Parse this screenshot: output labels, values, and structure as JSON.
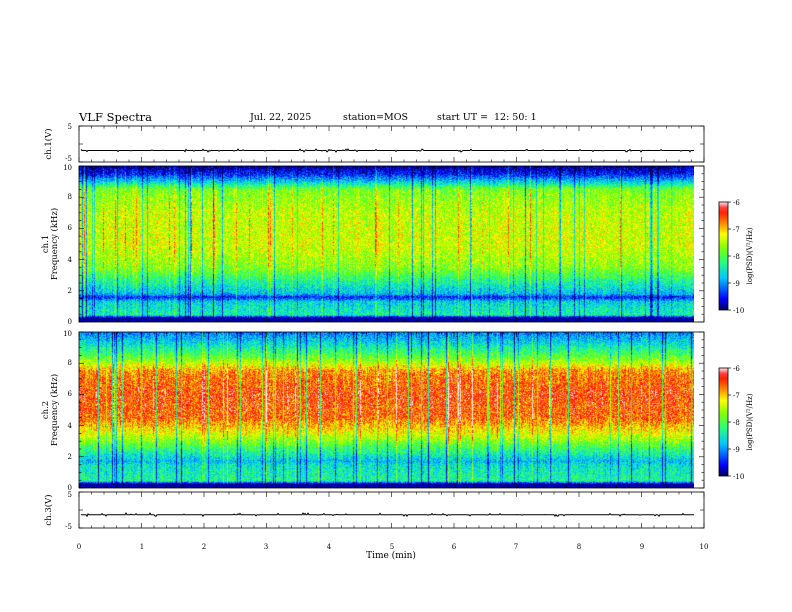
{
  "header": {
    "title": "VLF Spectra",
    "date": "Jul. 22, 2025",
    "station": "station=MOS",
    "start_label": "start  UT  =",
    "start_value": "12: 50: 1"
  },
  "colors": {
    "background": "#ffffff",
    "axis": "#000000",
    "colormap": [
      "#000080",
      "#0000ff",
      "#00ffff",
      "#00ff00",
      "#ffff00",
      "#ff0000",
      "#ffffff"
    ]
  },
  "chart_data": [
    {
      "type": "line",
      "name": "ch1-voltage",
      "ylabel": "ch.1(V)",
      "ylim": [
        -5,
        5
      ],
      "yticks": [
        "5",
        "-5"
      ],
      "baseline_value": -1.8,
      "xlim": [
        0,
        10
      ]
    },
    {
      "type": "heatmap",
      "name": "ch1-spectrogram",
      "ylabel": "ch.1",
      "ylabel2": "Frequency (kHz)",
      "ylim": [
        0,
        10
      ],
      "yticks": [
        "0",
        "2",
        "4",
        "6",
        "8",
        "10"
      ],
      "xlim": [
        0,
        10
      ],
      "xdata_max": 9.85,
      "bands": [
        {
          "f": 0.0,
          "v": 0.0
        },
        {
          "f": 0.3,
          "v": 0.05
        },
        {
          "f": 0.45,
          "v": 0.4
        },
        {
          "f": 1.3,
          "v": 0.33
        },
        {
          "f": 1.6,
          "v": 0.12
        },
        {
          "f": 1.8,
          "v": 0.3
        },
        {
          "f": 2.6,
          "v": 0.42
        },
        {
          "f": 3.5,
          "v": 0.58
        },
        {
          "f": 5.0,
          "v": 0.66
        },
        {
          "f": 7.0,
          "v": 0.64
        },
        {
          "f": 8.5,
          "v": 0.56
        },
        {
          "f": 9.0,
          "v": 0.32
        },
        {
          "f": 9.5,
          "v": 0.12
        },
        {
          "f": 10.0,
          "v": 0.03
        }
      ],
      "colorbar": {
        "label": "log(PSD)(V²/Hz)",
        "ticks": [
          "-6",
          "-7",
          "-8",
          "-9",
          "-10"
        ],
        "range": [
          -10,
          -6
        ]
      }
    },
    {
      "type": "heatmap",
      "name": "ch2-spectrogram",
      "ylabel": "ch.2",
      "ylabel2": "Frequency (kHz)",
      "ylim": [
        0,
        10
      ],
      "yticks": [
        "0",
        "2",
        "4",
        "6",
        "8",
        "10"
      ],
      "xlim": [
        0,
        10
      ],
      "xdata_max": 9.85,
      "bands": [
        {
          "f": 0.0,
          "v": 0.0
        },
        {
          "f": 0.3,
          "v": 0.08
        },
        {
          "f": 0.45,
          "v": 0.42
        },
        {
          "f": 1.5,
          "v": 0.36
        },
        {
          "f": 1.7,
          "v": 0.3
        },
        {
          "f": 2.5,
          "v": 0.46
        },
        {
          "f": 3.5,
          "v": 0.68
        },
        {
          "f": 4.5,
          "v": 0.84
        },
        {
          "f": 6.0,
          "v": 0.88
        },
        {
          "f": 7.5,
          "v": 0.8
        },
        {
          "f": 8.3,
          "v": 0.55
        },
        {
          "f": 9.2,
          "v": 0.36
        },
        {
          "f": 10.0,
          "v": 0.22
        }
      ],
      "colorbar": {
        "label": "log(PSD)(V²/Hz)",
        "ticks": [
          "-6",
          "-7",
          "-8",
          "-9",
          "-10"
        ],
        "range": [
          -10,
          -6
        ]
      }
    },
    {
      "type": "line",
      "name": "ch3-voltage",
      "ylabel": "ch.3(V)",
      "ylim": [
        -5,
        5
      ],
      "yticks": [
        "5",
        "-5"
      ],
      "baseline_value": -1.3,
      "xlim": [
        0,
        10
      ]
    }
  ],
  "xaxis": {
    "label": "Time (min)",
    "ticks": [
      "0",
      "1",
      "2",
      "3",
      "4",
      "5",
      "6",
      "7",
      "8",
      "9",
      "10"
    ]
  }
}
